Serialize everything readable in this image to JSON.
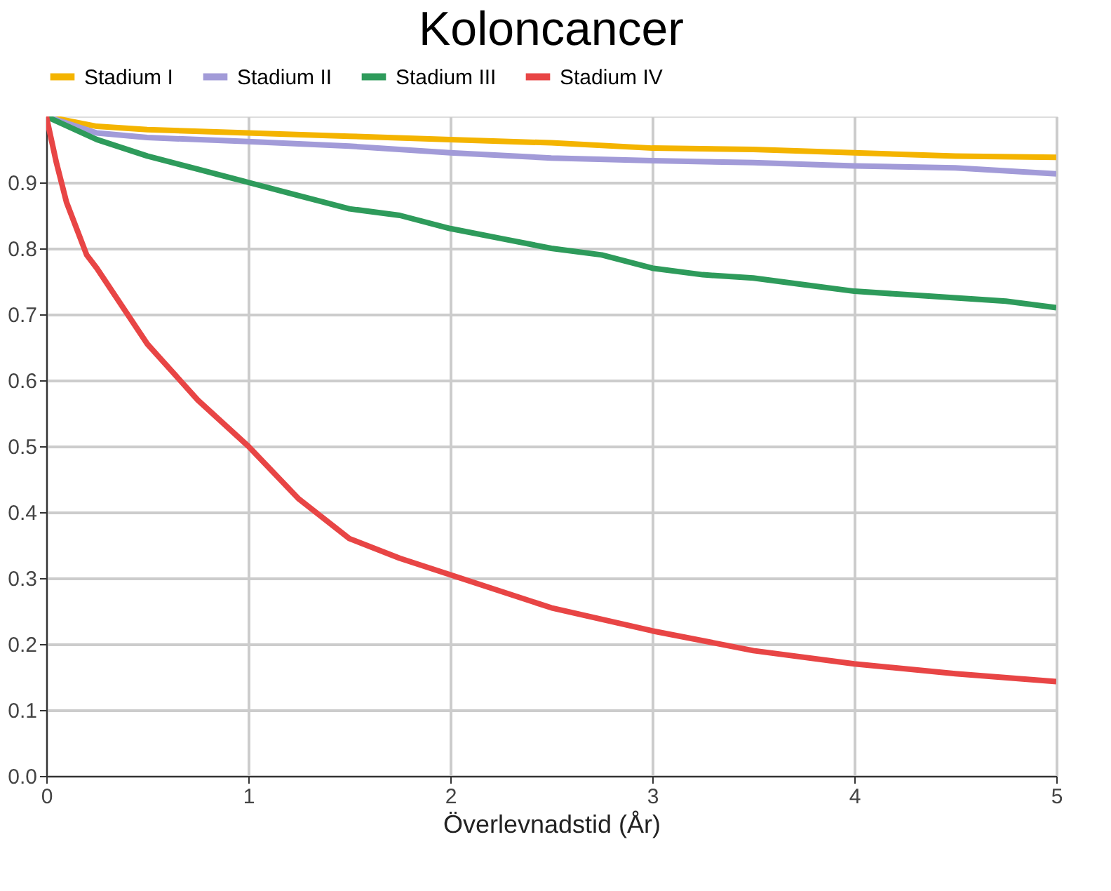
{
  "chart_data": {
    "type": "line",
    "title": "Koloncancer",
    "xlabel": "Överlevnadstid (År)",
    "xlim": [
      0,
      5
    ],
    "xticks": [
      0,
      1,
      2,
      3,
      4,
      5
    ],
    "ylim": [
      0,
      1
    ],
    "yticks": [
      {
        "value": 0,
        "label": "0.0"
      },
      0.1,
      0.2,
      0.3,
      0.4,
      0.5,
      0.6,
      0.7,
      0.8,
      0.9
    ],
    "grid": true,
    "legend": "top",
    "marker": "none",
    "line_style": "solid",
    "series": [
      {
        "name": "Stadium I",
        "color": "#f4b400",
        "x": [
          0,
          0.25,
          0.5,
          1,
          1.5,
          2,
          2.5,
          3,
          3.5,
          4,
          4.5,
          5
        ],
        "values": [
          1,
          0.985,
          0.98,
          0.975,
          0.97,
          0.965,
          0.96,
          0.952,
          0.95,
          0.945,
          0.94,
          0.938
        ]
      },
      {
        "name": "Stadium II",
        "color": "#a29bd8",
        "x": [
          0,
          0.25,
          0.5,
          1,
          1.5,
          2,
          2.5,
          3,
          3.5,
          4,
          4.5,
          5
        ],
        "values": [
          1,
          0.975,
          0.968,
          0.962,
          0.955,
          0.945,
          0.937,
          0.933,
          0.93,
          0.925,
          0.922,
          0.913
        ]
      },
      {
        "name": "Stadium III",
        "color": "#2e9b5b",
        "x": [
          0,
          0.25,
          0.5,
          0.75,
          1,
          1.25,
          1.5,
          1.75,
          2,
          2.25,
          2.5,
          2.75,
          3,
          3.25,
          3.5,
          3.75,
          4,
          4.25,
          4.5,
          4.75,
          5
        ],
        "values": [
          1,
          0.965,
          0.94,
          0.92,
          0.9,
          0.88,
          0.86,
          0.85,
          0.83,
          0.815,
          0.8,
          0.79,
          0.77,
          0.76,
          0.755,
          0.745,
          0.735,
          0.73,
          0.725,
          0.72,
          0.71
        ]
      },
      {
        "name": "Stadium IV",
        "color": "#e84545",
        "x": [
          0,
          0.05,
          0.1,
          0.15,
          0.2,
          0.25,
          0.5,
          0.75,
          1,
          1.25,
          1.5,
          1.75,
          2,
          2.5,
          3,
          3.5,
          4,
          4.5,
          5
        ],
        "values": [
          1,
          0.93,
          0.87,
          0.83,
          0.79,
          0.77,
          0.655,
          0.57,
          0.5,
          0.42,
          0.36,
          0.33,
          0.305,
          0.255,
          0.22,
          0.19,
          0.17,
          0.155,
          0.143
        ]
      }
    ]
  }
}
